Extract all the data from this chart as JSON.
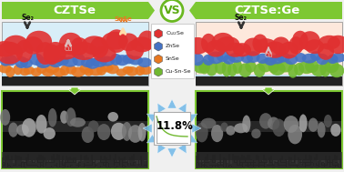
{
  "title_left": "CZTSe",
  "title_right": "CZTSe:Ge",
  "vs_text": "VS",
  "efficiency": "11.8%",
  "header_bg": "#7dc832",
  "header_text_color": "white",
  "vs_bg": "white",
  "vs_border": "#6ab820",
  "vs_text_color": "#5aaa10",
  "left_panel_bg": "#d8eef8",
  "right_panel_bg": "#fde8dc",
  "arrow_color_green": "#7dc832",
  "center_arrow_color": "#70b8e8",
  "efficiency_color": "black",
  "curve_color": "#70b830",
  "overall_bg": "#f0f0f0",
  "cu2se_color": "#e03030",
  "znse_color": "#4472c4",
  "snse_color": "#e87820",
  "cusnse_color": "#70b830",
  "substrate_color": "#333333",
  "dark_arrow_color": "#555555",
  "sem_grain_colors": [
    "#555555",
    "#777777",
    "#999999",
    "#aaaaaa",
    "#666666",
    "#888888"
  ]
}
